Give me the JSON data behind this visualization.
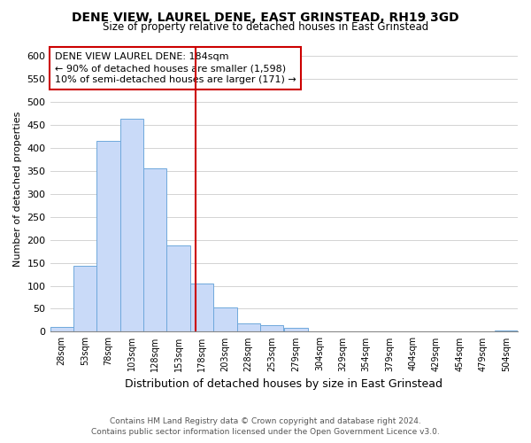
{
  "title": "DENE VIEW, LAUREL DENE, EAST GRINSTEAD, RH19 3GD",
  "subtitle": "Size of property relative to detached houses in East Grinstead",
  "xlabel": "Distribution of detached houses by size in East Grinstead",
  "ylabel": "Number of detached properties",
  "bar_edges": [
    28,
    53,
    78,
    103,
    128,
    153,
    178,
    203,
    228,
    253,
    279,
    304,
    329,
    354,
    379,
    404,
    429,
    454,
    479,
    504,
    529
  ],
  "bar_heights": [
    10,
    143,
    415,
    463,
    355,
    188,
    105,
    53,
    18,
    14,
    9,
    1,
    0,
    0,
    0,
    0,
    0,
    0,
    0,
    3
  ],
  "bar_color": "#c9daf8",
  "bar_edge_color": "#6fa8dc",
  "property_line_x": 184,
  "annotation_title": "DENE VIEW LAUREL DENE: 184sqm",
  "annotation_line1": "← 90% of detached houses are smaller (1,598)",
  "annotation_line2": "10% of semi-detached houses are larger (171) →",
  "ylim": [
    0,
    620
  ],
  "yticks": [
    0,
    50,
    100,
    150,
    200,
    250,
    300,
    350,
    400,
    450,
    500,
    550,
    600
  ],
  "footer_line1": "Contains HM Land Registry data © Crown copyright and database right 2024.",
  "footer_line2": "Contains public sector information licensed under the Open Government Licence v3.0.",
  "bg_color": "#ffffff",
  "grid_color": "#cccccc",
  "annotation_box_color": "#ffffff",
  "annotation_box_edge": "#cc0000",
  "red_line_color": "#cc0000"
}
